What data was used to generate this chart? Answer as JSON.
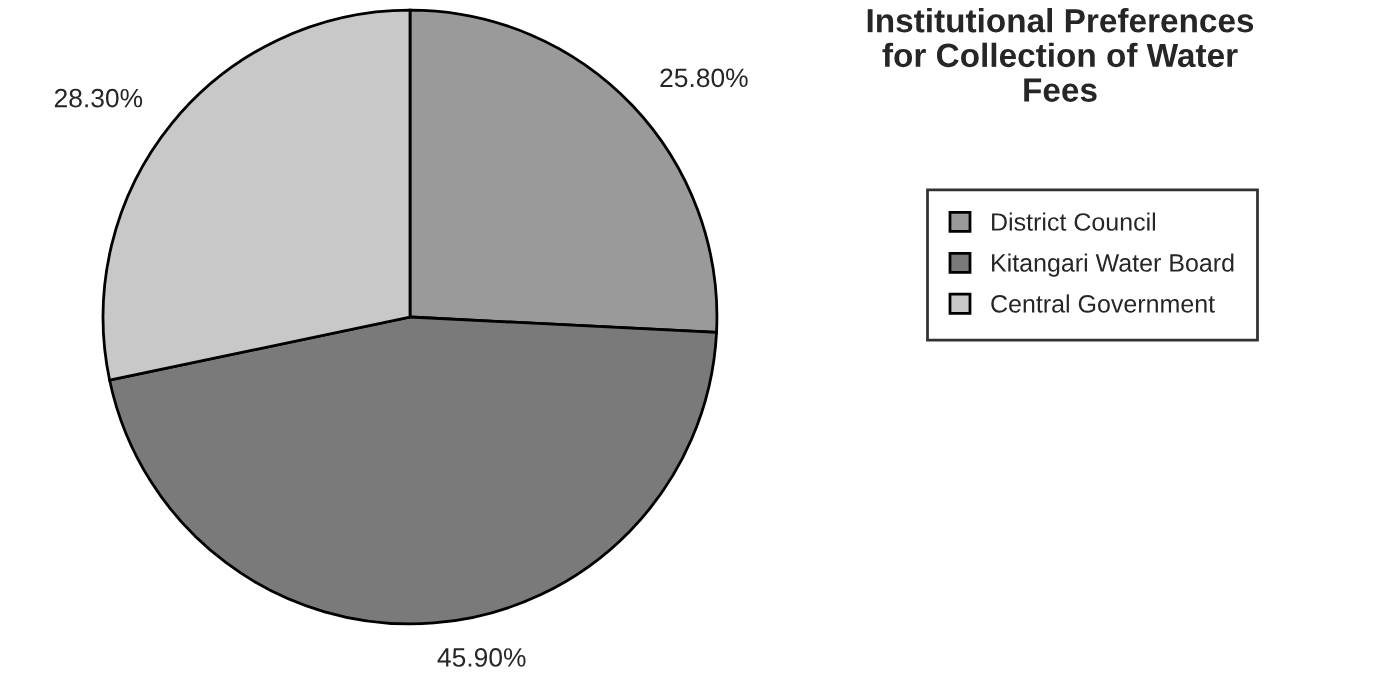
{
  "chart_data": {
    "type": "pie",
    "title": "Institutional Preferences\nfor Collection of Water\nFees",
    "categories": [
      "District Council",
      "Kitangari Water Board",
      "Central Government"
    ],
    "values": [
      25.8,
      45.9,
      28.3
    ],
    "value_labels": [
      "25.80%",
      "45.90%",
      "28.30%"
    ],
    "colors": [
      "#9a9a9a",
      "#7a7a7a",
      "#c8c8c8"
    ],
    "legend": "right"
  }
}
